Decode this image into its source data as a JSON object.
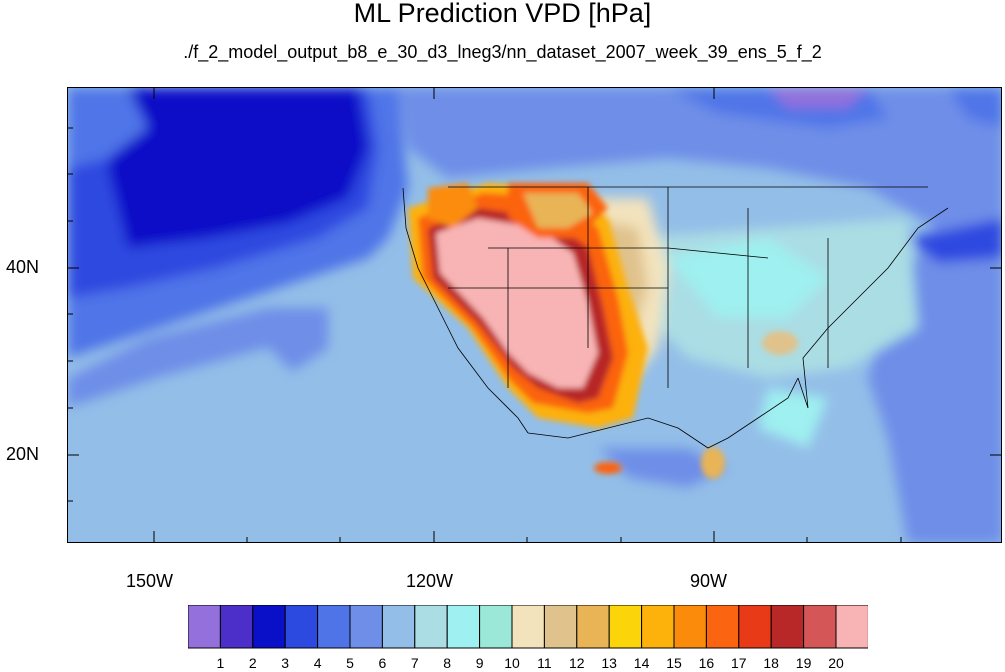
{
  "title": "ML Prediction VPD [hPa]",
  "subtitle": "./f_2_model_output_b8_e_30_d3_lneg3/nn_dataset_2007_week_39_ens_5_f_2",
  "axes": {
    "lat_labels": [
      "40N",
      "20N"
    ],
    "lon_labels": [
      "150W",
      "120W",
      "90W"
    ]
  },
  "colorbar": {
    "labels": [
      "1",
      "2",
      "3",
      "4",
      "5",
      "6",
      "7",
      "8",
      "9",
      "10",
      "11",
      "12",
      "13",
      "14",
      "15",
      "16",
      "17",
      "18",
      "19",
      "20"
    ],
    "colors": [
      "#9370db",
      "#4b2fc8",
      "#0a10c8",
      "#2d4ae0",
      "#4f74e8",
      "#6e8ee8",
      "#93bee8",
      "#aadde4",
      "#9ff0f0",
      "#9be8d8",
      "#f3e3bd",
      "#e0c28c",
      "#e8b456",
      "#fbd40a",
      "#fcb10b",
      "#fb8c0b",
      "#fb6410",
      "#e83a16",
      "#b82828",
      "#d45656",
      "#f8b4b4"
    ]
  },
  "chart_data": {
    "type": "heatmap",
    "title": "ML Prediction VPD [hPa]",
    "subtitle": "./f_2_model_output_b8_e_30_d3_lneg3/nn_dataset_2007_week_39_ens_5_f_2",
    "lon_range": [
      -160,
      -60
    ],
    "lat_range": [
      10,
      60
    ],
    "x_ticks": [
      "150W",
      "120W",
      "90W"
    ],
    "y_ticks": [
      "40N",
      "20N"
    ],
    "color_levels": [
      1,
      2,
      3,
      4,
      5,
      6,
      7,
      8,
      9,
      10,
      11,
      12,
      13,
      14,
      15,
      16,
      17,
      18,
      19,
      20
    ]
  }
}
